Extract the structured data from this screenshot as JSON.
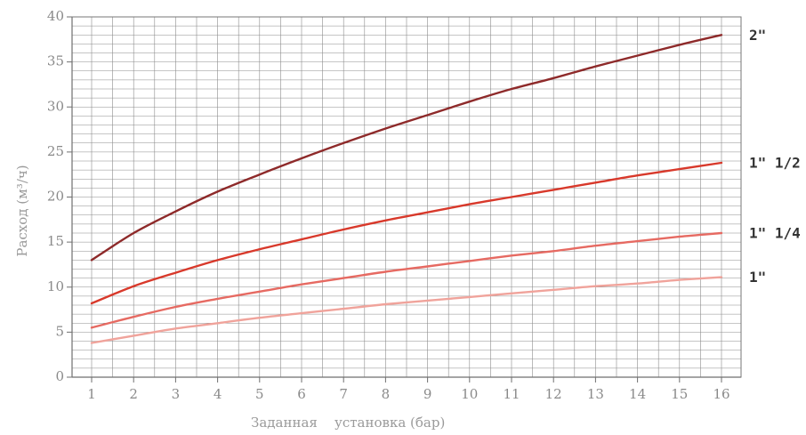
{
  "chart_data": {
    "type": "line",
    "title": "",
    "xlabel": [
      "Заданная",
      "установка (бар)"
    ],
    "ylabel": "Расход (м³/ч)",
    "xlim": [
      0,
      16
    ],
    "ylim": [
      0,
      40
    ],
    "x_ticks": [
      1,
      2,
      3,
      4,
      5,
      6,
      7,
      8,
      9,
      10,
      11,
      12,
      13,
      14,
      15,
      16
    ],
    "y_ticks": [
      0,
      5,
      10,
      15,
      20,
      25,
      30,
      35,
      40
    ],
    "x_minor_step": 0.5,
    "y_minor_step": 1,
    "grid": true,
    "x": [
      1,
      2,
      3,
      4,
      5,
      6,
      7,
      8,
      9,
      10,
      11,
      12,
      13,
      14,
      15,
      16
    ],
    "series": [
      {
        "name": "2\"",
        "color": "#8e2a2a",
        "values": [
          13.0,
          16.0,
          18.4,
          20.6,
          22.5,
          24.3,
          26.0,
          27.6,
          29.1,
          30.6,
          32.0,
          33.2,
          34.5,
          35.7,
          36.9,
          38.0
        ]
      },
      {
        "name": "1\" 1/2",
        "color": "#d8392b",
        "values": [
          8.2,
          10.1,
          11.6,
          13.0,
          14.2,
          15.3,
          16.4,
          17.4,
          18.3,
          19.2,
          20.0,
          20.8,
          21.6,
          22.4,
          23.1,
          23.8
        ]
      },
      {
        "name": "1\" 1/4",
        "color": "#e66a62",
        "values": [
          5.5,
          6.7,
          7.8,
          8.7,
          9.5,
          10.3,
          11.0,
          11.7,
          12.3,
          12.9,
          13.5,
          14.0,
          14.6,
          15.1,
          15.6,
          16.0
        ]
      },
      {
        "name": "1\"",
        "color": "#f0a39b",
        "values": [
          3.8,
          4.6,
          5.4,
          6.0,
          6.6,
          7.1,
          7.6,
          8.1,
          8.5,
          8.9,
          9.3,
          9.7,
          10.1,
          10.4,
          10.8,
          11.1
        ]
      }
    ]
  }
}
